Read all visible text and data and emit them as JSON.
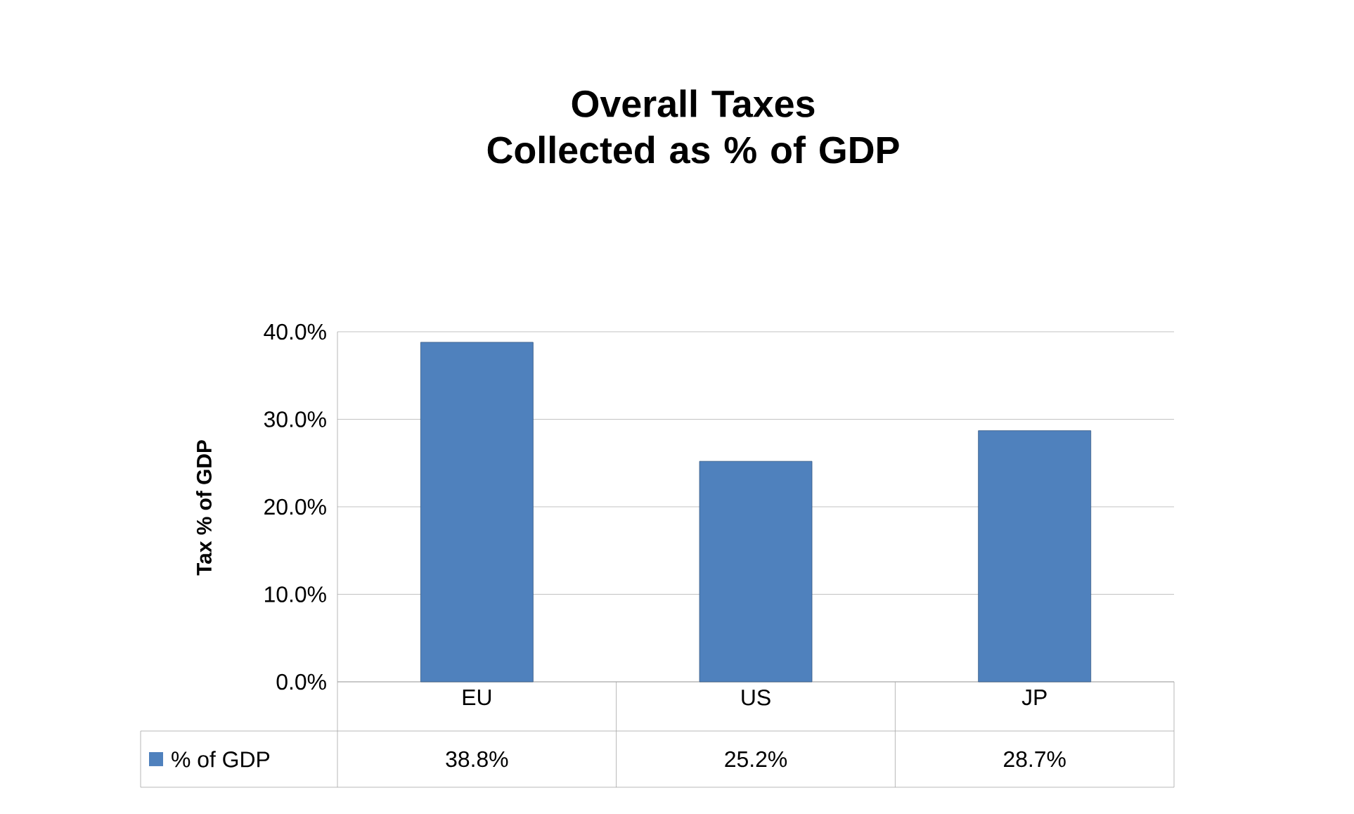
{
  "chart_data": {
    "type": "bar",
    "title": "Overall Taxes Collected as % of GDP",
    "ylabel": "Tax % of GDP",
    "categories": [
      "EU",
      "US",
      "JP"
    ],
    "series": [
      {
        "name": "% of GDP",
        "color": "#4f81bd",
        "values": [
          38.8,
          25.2,
          28.7
        ],
        "value_labels": [
          "38.8%",
          "25.2%",
          "28.7%"
        ]
      }
    ],
    "ylim": [
      0,
      40
    ],
    "yticks": [
      {
        "value": 0,
        "label": "0.0%"
      },
      {
        "value": 10,
        "label": "10.0%"
      },
      {
        "value": 20,
        "label": "20.0%"
      },
      {
        "value": 30,
        "label": "30.0%"
      },
      {
        "value": 40,
        "label": "40.0%"
      }
    ],
    "grid": "y",
    "legend": "bottom"
  }
}
